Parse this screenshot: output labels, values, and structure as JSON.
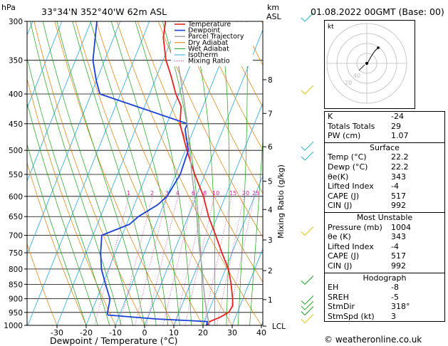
{
  "header": {
    "location": "33°34'N  352°40'W  62m  ASL",
    "datetime": "01.08.2022  00GMT  (Base: 00)",
    "hpa_label": "hPa",
    "km_label": "km",
    "asl_label": "ASL"
  },
  "chart_data": {
    "type": "skew-t",
    "xlabel": "Dewpoint / Temperature (°C)",
    "ylabel_right": "Mixing Ratio (g/kg)",
    "pressure_ticks": [
      300,
      350,
      400,
      450,
      500,
      550,
      600,
      650,
      700,
      750,
      800,
      850,
      900,
      950,
      1000
    ],
    "temp_ticks": [
      -30,
      -20,
      -10,
      0,
      10,
      20,
      30,
      40
    ],
    "km_ticks": [
      {
        "label": "8",
        "p": 378
      },
      {
        "label": "7",
        "p": 432
      },
      {
        "label": "6",
        "p": 493
      },
      {
        "label": "5",
        "p": 565
      },
      {
        "label": "4",
        "p": 632
      },
      {
        "label": "3",
        "p": 713
      },
      {
        "label": "2",
        "p": 805
      },
      {
        "label": "1",
        "p": 903
      },
      {
        "label": "LCL",
        "p": 1003
      }
    ],
    "mixing_ratio_labels": [
      "1",
      "2",
      "3",
      "4",
      "6",
      "8",
      "10",
      "15",
      "20",
      "25"
    ],
    "mixing_ratio_values": [
      1,
      2,
      3,
      4,
      6,
      8,
      10,
      15,
      20,
      25
    ],
    "legend": [
      "Temperature",
      "Dewpoint",
      "Parcel Trajectory",
      "Dry Adiabat",
      "Wet Adiabat",
      "Isotherm",
      "Mixing Ratio"
    ],
    "colors": {
      "temperature": "#e82020",
      "dewpoint": "#1a3fd6",
      "parcel": "#a6a6a6",
      "dry_adiabat": "#e07a00",
      "wet_adiabat": "#18a018",
      "isotherm": "#2aa8e0",
      "mixing_ratio": "#d0209a"
    },
    "series": [
      {
        "name": "Temperature",
        "points": [
          [
            1000,
            21.5
          ],
          [
            985,
            21.8
          ],
          [
            970,
            24.5
          ],
          [
            950,
            27.0
          ],
          [
            925,
            27.5
          ],
          [
            900,
            26.5
          ],
          [
            850,
            24.0
          ],
          [
            800,
            21.0
          ],
          [
            750,
            16.5
          ],
          [
            700,
            12.0
          ],
          [
            650,
            7.0
          ],
          [
            600,
            2.5
          ],
          [
            550,
            -3.5
          ],
          [
            500,
            -9.5
          ],
          [
            450,
            -15.5
          ],
          [
            420,
            -17.5
          ],
          [
            400,
            -21.0
          ],
          [
            370,
            -25.5
          ],
          [
            350,
            -29.0
          ],
          [
            320,
            -33.0
          ],
          [
            300,
            -34.5
          ]
        ]
      },
      {
        "name": "Dewpoint",
        "points": [
          [
            1000,
            21.2
          ],
          [
            985,
            21.0
          ],
          [
            975,
            3.0
          ],
          [
            960,
            -14.0
          ],
          [
            950,
            -14.5
          ],
          [
            920,
            -15.0
          ],
          [
            900,
            -15.5
          ],
          [
            850,
            -19.0
          ],
          [
            800,
            -22.5
          ],
          [
            750,
            -25.0
          ],
          [
            700,
            -27.0
          ],
          [
            670,
            -19.0
          ],
          [
            650,
            -17.0
          ],
          [
            620,
            -12.0
          ],
          [
            600,
            -10.0
          ],
          [
            550,
            -8.5
          ],
          [
            500,
            -9.0
          ],
          [
            460,
            -13.0
          ],
          [
            450,
            -13.0
          ],
          [
            400,
            -47.0
          ],
          [
            380,
            -50.0
          ],
          [
            350,
            -54.0
          ],
          [
            300,
            -58.0
          ]
        ]
      },
      {
        "name": "Parcel Trajectory",
        "points": [
          [
            1000,
            22.2
          ],
          [
            950,
            19.5
          ],
          [
            900,
            17.0
          ],
          [
            850,
            14.5
          ],
          [
            800,
            12.0
          ],
          [
            750,
            9.0
          ],
          [
            700,
            6.0
          ],
          [
            650,
            3.0
          ],
          [
            600,
            -0.5
          ],
          [
            550,
            -4.5
          ],
          [
            500,
            -8.5
          ],
          [
            450,
            -13.0
          ],
          [
            400,
            -18.5
          ],
          [
            350,
            -25.0
          ],
          [
            300,
            -31.5
          ]
        ]
      }
    ]
  },
  "hodograph": {
    "label": "kt",
    "ring_labels": [
      "20",
      "40"
    ]
  },
  "indices": [
    {
      "key": "K",
      "value": "-24"
    },
    {
      "key": "Totals Totals",
      "value": "29"
    },
    {
      "key": "PW (cm)",
      "value": "1.07"
    }
  ],
  "surface": {
    "title": "Surface",
    "rows": [
      {
        "key": "Temp (°C)",
        "value": "22.2"
      },
      {
        "key": "Dewp (°C)",
        "value": "22.2"
      },
      {
        "key": "θe(K)",
        "value": "343"
      },
      {
        "key": "Lifted Index",
        "value": "-4"
      },
      {
        "key": "CAPE (J)",
        "value": "517"
      },
      {
        "key": "CIN (J)",
        "value": "992"
      }
    ]
  },
  "most_unstable": {
    "title": "Most Unstable",
    "rows": [
      {
        "key": "Pressure (mb)",
        "value": "1004"
      },
      {
        "key": "θe (K)",
        "value": "343"
      },
      {
        "key": "Lifted Index",
        "value": "-4"
      },
      {
        "key": "CAPE (J)",
        "value": "517"
      },
      {
        "key": "CIN (J)",
        "value": "992"
      }
    ]
  },
  "hodograph_table": {
    "title": "Hodograph",
    "rows": [
      {
        "key": "EH",
        "value": "-8"
      },
      {
        "key": "SREH",
        "value": "-5"
      },
      {
        "key": "StmDir",
        "value": "318°"
      },
      {
        "key": "StmSpd (kt)",
        "value": "3"
      }
    ]
  },
  "footer": "© weatheronline.co.uk"
}
